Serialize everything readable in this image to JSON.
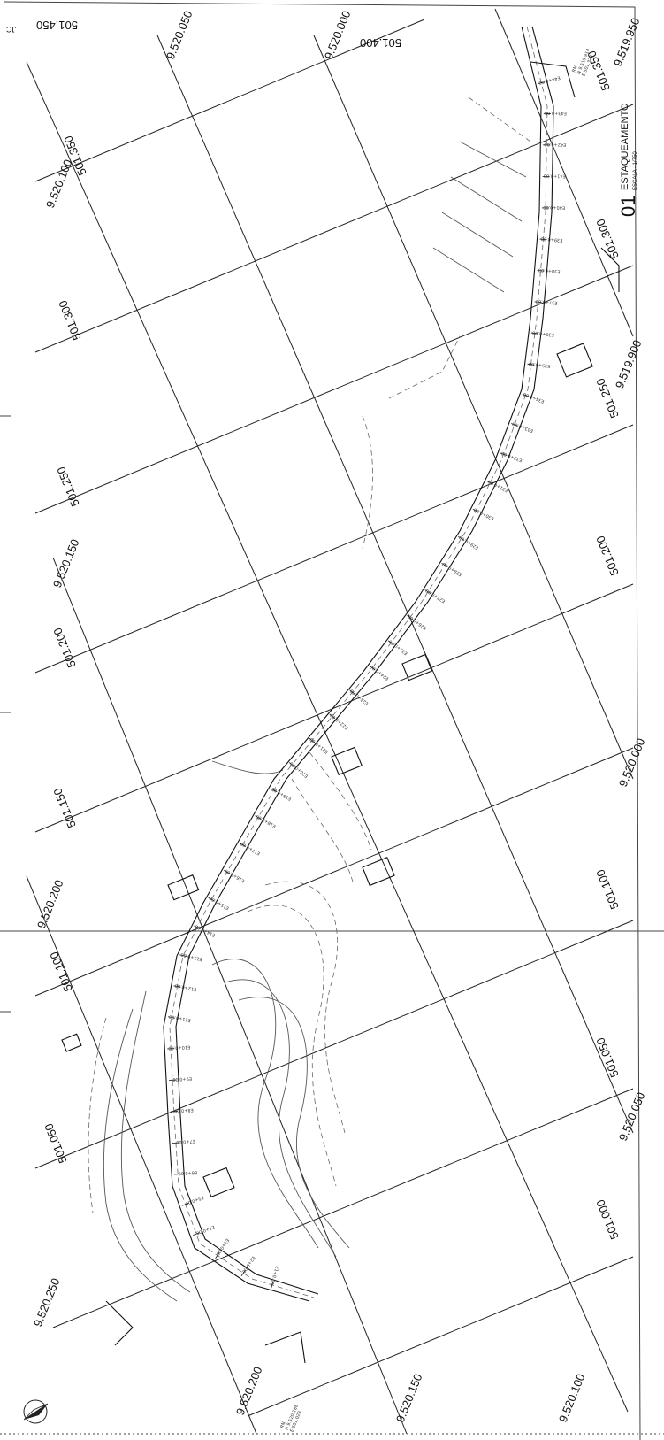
{
  "title_block": {
    "number": "01",
    "title": "ESTAQUEAMENTO",
    "scale": "ESCALA - 1/750"
  },
  "corner_marks": {
    "top_left": "JC"
  },
  "easting_labels": [
    "501.450",
    "501.400",
    "501.350",
    "501.300",
    "501.250",
    "501.200",
    "501.150",
    "501.100",
    "501.050",
    "501.000",
    "501.350",
    "501.300",
    "501.250",
    "501.200",
    "501.150",
    "501.100",
    "501.050",
    "501.000"
  ],
  "northing_labels": [
    "9.520.050",
    "9.520.000",
    "9.519.950",
    "9.519.900",
    "9.520.100",
    "9.520.150",
    "9.520.200",
    "9.520.250",
    "9.520.200",
    "9.520.150",
    "9.520.100",
    "9.520.050",
    "9.520.000"
  ],
  "benchmarks": {
    "top": [
      "RN",
      "N 9.519.914",
      "E 501.328"
    ],
    "bottom": [
      "RN",
      "N 9.520.188",
      "E 501.028"
    ]
  },
  "station_labels": [
    "E44+0.00",
    "E43+0.00",
    "E42+0.00",
    "E41+0.00",
    "E40+0.00",
    "E39+0.00",
    "E38+0.00",
    "E37+0.00",
    "E36+0.00",
    "E35+0.00",
    "E34+0.00",
    "E33+0.00",
    "E32+0.00",
    "E31+0.00",
    "E30+0.00",
    "E29+0.00",
    "E28+0.00",
    "E27+0.00",
    "E26+0.00",
    "E25+0.00",
    "E24+0.00",
    "E23+0.00",
    "E22+0.00",
    "E21+0.00",
    "E20+0.00",
    "E19+0.00",
    "E18+0.00",
    "E17+0.00",
    "E16+0.00",
    "E15+0.00",
    "E14+0.00",
    "E13+0.00",
    "E12+0.00",
    "E11+0.00",
    "E10+0.00",
    "E9+0.00",
    "E8+0.00",
    "E7+0.00",
    "E6+0.00",
    "E5+0.00",
    "E4+0.00",
    "E3+0.00",
    "E2+0.00",
    "E1+0.00"
  ],
  "north_arrow": "north-arrow-icon"
}
